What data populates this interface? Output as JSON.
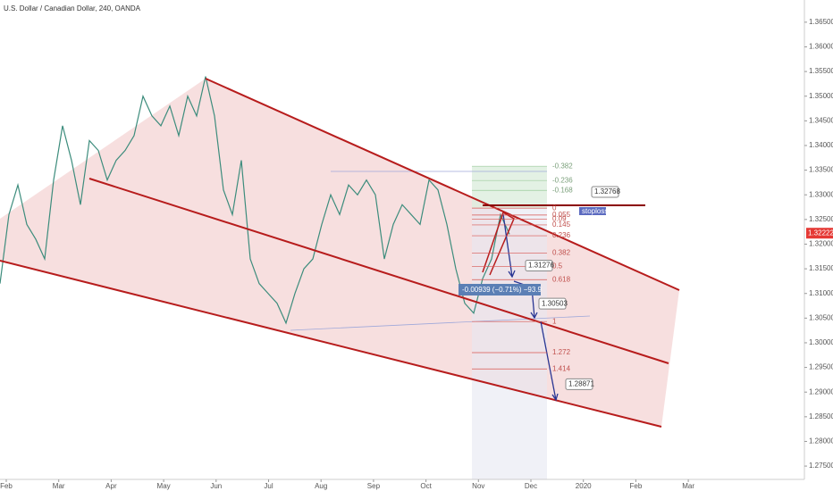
{
  "chart_data": {
    "type": "line",
    "title": "U.S. Dollar / Canadian Dollar, 240, OANDA",
    "color": "#3c8c7c",
    "values": [
      1.312,
      1.326,
      1.332,
      1.324,
      1.321,
      1.317,
      1.333,
      1.344,
      1.337,
      1.328,
      1.341,
      1.339,
      1.333,
      1.337,
      1.339,
      1.342,
      1.35,
      1.346,
      1.344,
      1.348,
      1.342,
      1.35,
      1.346,
      1.354,
      1.346,
      1.331,
      1.326,
      1.337,
      1.317,
      1.312,
      1.31,
      1.308,
      1.304,
      1.31,
      1.315,
      1.317,
      1.324,
      1.33,
      1.326,
      1.332,
      1.33,
      1.333,
      1.33,
      1.317,
      1.324,
      1.328,
      1.326,
      1.324,
      1.333,
      1.331,
      1.324,
      1.315,
      1.308,
      1.306,
      1.313,
      1.317,
      1.326,
      1.322
    ],
    "x_labels": [
      "Feb",
      "Mar",
      "Apr",
      "May",
      "Jun",
      "Jul",
      "Aug",
      "Sep",
      "Oct",
      "Nov",
      "Dec",
      "2020",
      "Feb",
      "Mar"
    ],
    "ylim": [
      1.2723,
      1.3695
    ],
    "yticks": [
      {
        "value": 1.275,
        "label": "1.27500"
      },
      {
        "value": 1.28,
        "label": "1.28000"
      },
      {
        "value": 1.285,
        "label": "1.28500"
      },
      {
        "value": 1.29,
        "label": "1.29000"
      },
      {
        "value": 1.295,
        "label": "1.29500"
      },
      {
        "value": 1.3,
        "label": "1.30000"
      },
      {
        "value": 1.305,
        "label": "1.30500"
      },
      {
        "value": 1.31,
        "label": "1.31000"
      },
      {
        "value": 1.315,
        "label": "1.31500"
      },
      {
        "value": 1.32,
        "label": "1.32000"
      },
      {
        "value": 1.325,
        "label": "1.32500"
      },
      {
        "value": 1.33,
        "label": "1.33000"
      },
      {
        "value": 1.335,
        "label": "1.33500"
      },
      {
        "value": 1.34,
        "label": "1.34000"
      },
      {
        "value": 1.345,
        "label": "1.34500"
      },
      {
        "value": 1.35,
        "label": "1.35000"
      },
      {
        "value": 1.355,
        "label": "1.35500"
      },
      {
        "value": 1.36,
        "label": "1.36000"
      },
      {
        "value": 1.365,
        "label": "1.36500"
      }
    ],
    "last_price": {
      "value": 1.32222,
      "label": "1.32222"
    },
    "fib_levels": [
      {
        "value": 1.3358,
        "label": "-0.382"
      },
      {
        "value": 1.3329,
        "label": "-0.236"
      },
      {
        "value": 1.3309,
        "label": "-0.168"
      },
      {
        "value": 1.3273,
        "label": "0"
      },
      {
        "value": 1.3259,
        "label": "0.055"
      },
      {
        "value": 1.3251,
        "label": "0.09"
      },
      {
        "value": 1.3239,
        "label": "0.145"
      },
      {
        "value": 1.3217,
        "label": "0.236"
      },
      {
        "value": 1.3182,
        "label": "0.382"
      },
      {
        "value": 1.3155,
        "label": "0.5"
      },
      {
        "value": 1.3128,
        "label": "0.618"
      },
      {
        "value": 1.3043,
        "label": "1"
      },
      {
        "value": 1.298,
        "label": "1.272"
      },
      {
        "value": 1.2947,
        "label": "1.414"
      }
    ],
    "price_notes": [
      {
        "value": 1.32768,
        "label": "1.32768"
      },
      {
        "value": 1.31276,
        "label": "1.31276"
      },
      {
        "value": 1.30503,
        "label": "1.30503"
      },
      {
        "value": 1.28871,
        "label": "1.28871"
      }
    ],
    "stop_label": "stoploss",
    "measure_label": "-0.00939 (−0.71%) −93.9"
  }
}
